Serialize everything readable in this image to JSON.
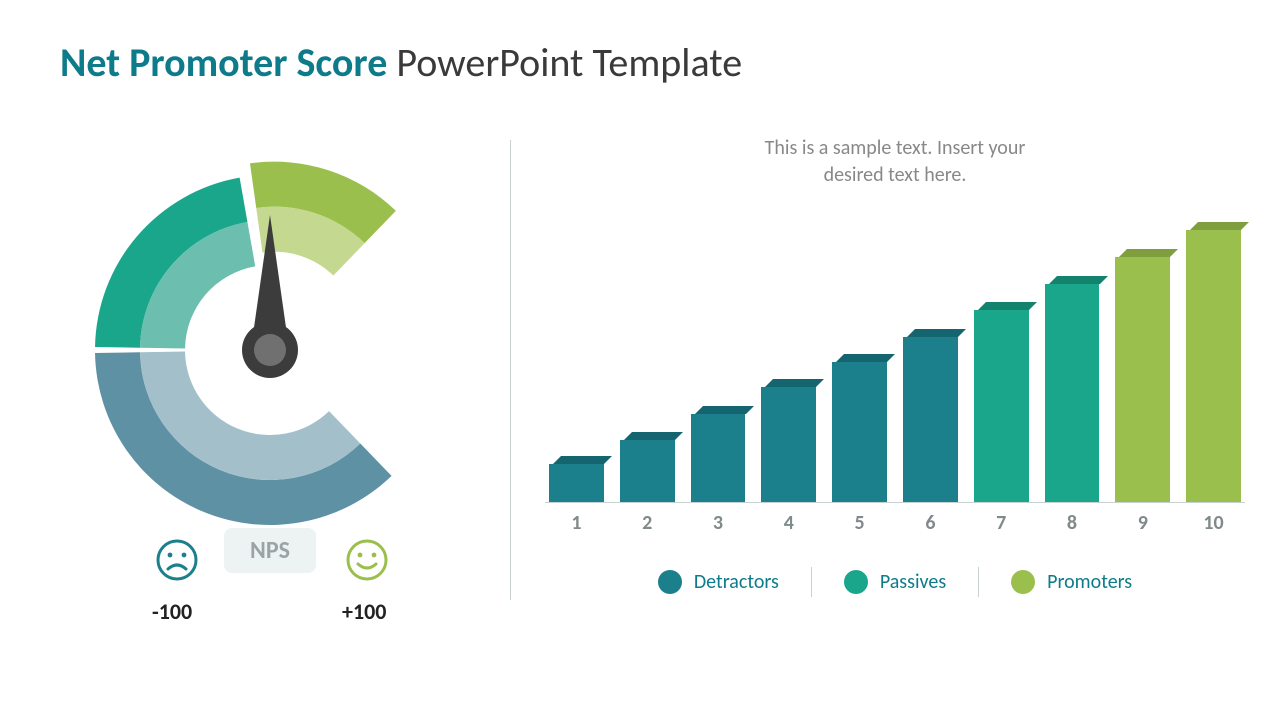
{
  "title": {
    "accent": "Net Promoter Score",
    "rest": " PowerPoint Template",
    "accent_color": "#0d7b8a",
    "rest_color": "#3a3a3a"
  },
  "gauge": {
    "center_label": "NPS",
    "min_label": "-100",
    "max_label": "+100",
    "segments": [
      {
        "name": "detractors",
        "outer_color": "#5d91a3",
        "inner_color": "#a3c0ca",
        "start_deg": 135,
        "end_deg": 270
      },
      {
        "name": "passives",
        "outer_color": "#1aa68a",
        "inner_color": "#6cbfae",
        "start_deg": 270,
        "end_deg": 351
      },
      {
        "name": "promoters",
        "outer_color": "#9bbf4d",
        "inner_color": "#c4d890",
        "start_deg": 351,
        "end_deg": 405,
        "exploded": true
      }
    ],
    "needle_angle_deg": 360,
    "needle_color": "#3c3c3c",
    "hub_colors": {
      "outer": "#3c3c3c",
      "inner": "#707070"
    },
    "sad_face_color": "#1b7f8c",
    "happy_face_color": "#9bbf4d",
    "range_label_color": "#222222"
  },
  "chart": {
    "caption_line1": "This is a sample text. Insert your",
    "caption_line2": "desired text here.",
    "bars": [
      {
        "label": "1",
        "value": 38,
        "color": "#1b7f8c",
        "shade": "#156570"
      },
      {
        "label": "2",
        "value": 62,
        "color": "#1b7f8c",
        "shade": "#156570"
      },
      {
        "label": "3",
        "value": 88,
        "color": "#1b7f8c",
        "shade": "#156570"
      },
      {
        "label": "4",
        "value": 115,
        "color": "#1b7f8c",
        "shade": "#156570"
      },
      {
        "label": "5",
        "value": 140,
        "color": "#1b7f8c",
        "shade": "#156570"
      },
      {
        "label": "6",
        "value": 165,
        "color": "#1b7f8c",
        "shade": "#156570"
      },
      {
        "label": "7",
        "value": 192,
        "color": "#1aa68a",
        "shade": "#14836d"
      },
      {
        "label": "8",
        "value": 218,
        "color": "#1aa68a",
        "shade": "#14836d"
      },
      {
        "label": "9",
        "value": 245,
        "color": "#9bbf4d",
        "shade": "#7f9e3d"
      },
      {
        "label": "10",
        "value": 272,
        "color": "#9bbf4d",
        "shade": "#7f9e3d"
      }
    ],
    "max_bar_height": 280,
    "axis_label_color": "#808a8a"
  },
  "legend": {
    "items": [
      {
        "label": "Detractors",
        "color": "#1b7f8c"
      },
      {
        "label": "Passives",
        "color": "#1aa68a"
      },
      {
        "label": "Promoters",
        "color": "#9bbf4d"
      }
    ],
    "text_color": "#0d7b8a"
  }
}
